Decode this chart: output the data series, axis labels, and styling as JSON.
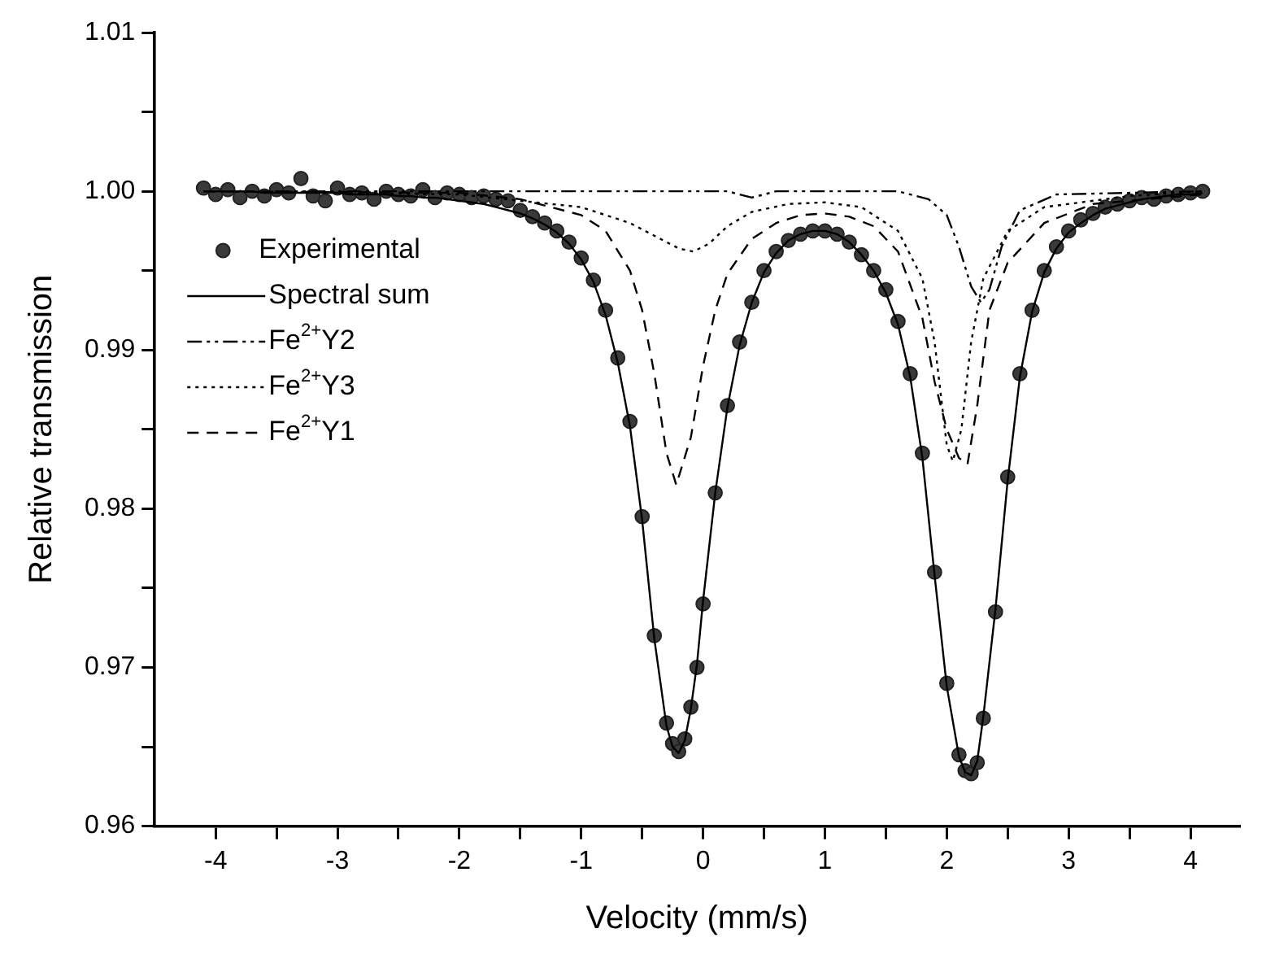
{
  "chart_data": {
    "type": "scatter",
    "xlabel": "Velocity (mm/s)",
    "ylabel": "Relative transmission",
    "xlim": [
      -4.5,
      4.4
    ],
    "xticks": [
      -4,
      {
        "value": -3.5,
        "label": null
      },
      -3,
      {
        "value": -2.5,
        "label": null
      },
      -2,
      {
        "value": -1.5,
        "label": null
      },
      -1,
      {
        "value": -0.5,
        "label": null
      },
      0,
      {
        "value": 0.5,
        "label": null
      },
      1,
      {
        "value": 1.5,
        "label": null
      },
      2,
      {
        "value": 2.5,
        "label": null
      },
      3,
      {
        "value": 3.5,
        "label": null
      },
      4
    ],
    "ylim": [
      0.96,
      1.01
    ],
    "yticks": [
      {
        "value": 0.96,
        "label": "0.96"
      },
      {
        "value": 0.965,
        "label": null
      },
      {
        "value": 0.97,
        "label": "0.97"
      },
      {
        "value": 0.975,
        "label": null
      },
      {
        "value": 0.98,
        "label": "0.98"
      },
      {
        "value": 0.985,
        "label": null
      },
      {
        "value": 0.99,
        "label": "0.99"
      },
      {
        "value": 0.995,
        "label": null
      },
      {
        "value": 1.0,
        "label": "1.00"
      },
      {
        "value": 1.005,
        "label": null
      },
      {
        "value": 1.01,
        "label": "1.01"
      }
    ],
    "grid": false,
    "legend": "left",
    "x": [
      -4.1,
      -4.0,
      -3.9,
      -3.8,
      -3.7,
      -3.6,
      -3.5,
      -3.4,
      -3.3,
      -3.2,
      -3.1,
      -3.0,
      -2.9,
      -2.8,
      -2.7,
      -2.6,
      -2.5,
      -2.4,
      -2.3,
      -2.2,
      -2.1,
      -2.0,
      -1.9,
      -1.8,
      -1.7,
      -1.6,
      -1.5,
      -1.4,
      -1.3,
      -1.2,
      -1.1,
      -1.0,
      -0.9,
      -0.8,
      -0.7,
      -0.6,
      -0.5,
      -0.4,
      -0.3,
      -0.25,
      -0.2,
      -0.15,
      -0.1,
      -0.05,
      0.0,
      0.1,
      0.2,
      0.3,
      0.4,
      0.5,
      0.6,
      0.7,
      0.8,
      0.9,
      1.0,
      1.1,
      1.2,
      1.3,
      1.4,
      1.5,
      1.6,
      1.7,
      1.8,
      1.9,
      2.0,
      2.1,
      2.15,
      2.2,
      2.25,
      2.3,
      2.4,
      2.5,
      2.6,
      2.7,
      2.8,
      2.9,
      3.0,
      3.1,
      3.2,
      3.3,
      3.4,
      3.5,
      3.6,
      3.7,
      3.8,
      3.9,
      4.0,
      4.1
    ],
    "series": [
      {
        "name": "Experimental",
        "type": "scatter",
        "marker": "circle",
        "color": "#222222",
        "values": [
          1.0002,
          0.9998,
          1.0001,
          0.9996,
          1.0,
          0.9997,
          1.0001,
          0.9999,
          1.0008,
          0.9997,
          0.9994,
          1.0002,
          0.9998,
          0.9999,
          0.9995,
          1.0,
          0.9998,
          0.9997,
          1.0001,
          0.9996,
          0.9999,
          0.9998,
          0.9996,
          0.9997,
          0.9995,
          0.9994,
          0.9988,
          0.9984,
          0.998,
          0.9975,
          0.9968,
          0.9958,
          0.9944,
          0.9925,
          0.9895,
          0.9855,
          0.9795,
          0.972,
          0.9665,
          0.9652,
          0.9647,
          0.9655,
          0.9675,
          0.97,
          0.974,
          0.981,
          0.9865,
          0.9905,
          0.993,
          0.995,
          0.9962,
          0.9969,
          0.9973,
          0.9975,
          0.9975,
          0.9973,
          0.9968,
          0.996,
          0.995,
          0.9938,
          0.9918,
          0.9885,
          0.9835,
          0.976,
          0.969,
          0.9645,
          0.9635,
          0.9633,
          0.964,
          0.9668,
          0.9735,
          0.982,
          0.9885,
          0.9925,
          0.995,
          0.9965,
          0.9975,
          0.9982,
          0.9986,
          0.999,
          0.9992,
          0.9994,
          0.9996,
          0.9995,
          0.9997,
          0.9998,
          0.9999,
          1.0
        ]
      },
      {
        "name": "Spectral sum",
        "type": "line",
        "line_style": "solid",
        "color": "#000000",
        "values": [
          1.0,
          1.0,
          1.0,
          1.0,
          1.0,
          0.9999,
          0.9999,
          0.9999,
          0.9999,
          0.9999,
          0.9999,
          0.9999,
          0.9998,
          0.9998,
          0.9998,
          0.9998,
          0.9997,
          0.9997,
          0.9996,
          0.9996,
          0.9995,
          0.9994,
          0.9993,
          0.9992,
          0.999,
          0.9988,
          0.9986,
          0.9983,
          0.9979,
          0.9974,
          0.9967,
          0.9957,
          0.9943,
          0.9922,
          0.9892,
          0.9852,
          0.9793,
          0.9718,
          0.9663,
          0.965,
          0.9646,
          0.9654,
          0.9674,
          0.9702,
          0.9742,
          0.981,
          0.9864,
          0.9903,
          0.993,
          0.9949,
          0.9961,
          0.9969,
          0.9973,
          0.9975,
          0.9975,
          0.9973,
          0.9968,
          0.996,
          0.995,
          0.9936,
          0.9916,
          0.9883,
          0.9832,
          0.9758,
          0.9688,
          0.9644,
          0.9634,
          0.9632,
          0.9641,
          0.9669,
          0.9737,
          0.9818,
          0.9883,
          0.9924,
          0.9949,
          0.9964,
          0.9974,
          0.998,
          0.9985,
          0.9989,
          0.9991,
          0.9993,
          0.9995,
          0.9996,
          0.9997,
          0.9998,
          0.9998,
          0.9999
        ]
      },
      {
        "name": "Fe$^{2+}$Y2",
        "type": "line",
        "line_style": "dashdotdot",
        "color": "#000000",
        "x": [
          -4.1,
          0.2,
          0.4,
          0.6,
          1.6,
          1.85,
          2.0,
          2.1,
          2.2,
          2.28,
          2.35,
          2.45,
          2.6,
          2.9,
          4.1
        ],
        "values": [
          1.0,
          1.0,
          0.9996,
          1.0,
          1.0,
          0.9995,
          0.9985,
          0.9965,
          0.994,
          0.993,
          0.9938,
          0.9965,
          0.9988,
          0.9998,
          1.0
        ]
      },
      {
        "name": "Fe$^{2+}$Y3",
        "type": "line",
        "line_style": "dotted",
        "color": "#000000",
        "x": [
          -4.1,
          -2.0,
          -1.0,
          -0.6,
          -0.4,
          -0.2,
          -0.08,
          0.05,
          0.2,
          0.4,
          0.7,
          1.0,
          1.3,
          1.6,
          1.8,
          1.9,
          2.0,
          2.05,
          2.12,
          2.2,
          2.3,
          2.5,
          2.8,
          3.5,
          4.1
        ],
        "values": [
          1.0,
          0.9998,
          0.999,
          0.998,
          0.9972,
          0.9964,
          0.9962,
          0.9967,
          0.9978,
          0.9987,
          0.9992,
          0.9993,
          0.999,
          0.9975,
          0.9945,
          0.9905,
          0.984,
          0.983,
          0.985,
          0.9905,
          0.9945,
          0.9975,
          0.999,
          0.9997,
          1.0
        ]
      },
      {
        "name": "Fe$^{2+}$Y1",
        "type": "line",
        "line_style": "dashed",
        "color": "#000000",
        "x": [
          -4.1,
          -2.0,
          -1.5,
          -1.0,
          -0.8,
          -0.6,
          -0.5,
          -0.4,
          -0.3,
          -0.22,
          -0.1,
          0.0,
          0.1,
          0.2,
          0.4,
          0.6,
          0.8,
          1.0,
          1.2,
          1.4,
          1.6,
          1.8,
          1.9,
          2.0,
          2.1,
          2.17,
          2.25,
          2.35,
          2.5,
          2.8,
          3.2,
          4.1
        ],
        "values": [
          1.0,
          0.9999,
          0.9995,
          0.9985,
          0.9975,
          0.995,
          0.9925,
          0.9885,
          0.9835,
          0.9815,
          0.9845,
          0.989,
          0.9925,
          0.9948,
          0.997,
          0.998,
          0.9985,
          0.9986,
          0.9984,
          0.9978,
          0.9962,
          0.992,
          0.988,
          0.985,
          0.9832,
          0.9828,
          0.9865,
          0.9925,
          0.9955,
          0.998,
          0.9992,
          0.9998
        ]
      }
    ]
  }
}
